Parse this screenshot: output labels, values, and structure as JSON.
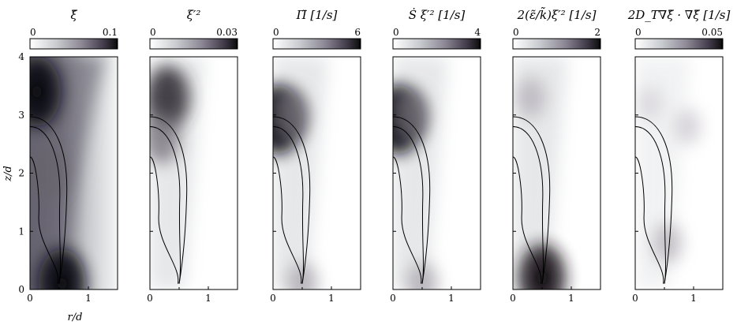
{
  "chart_data": [
    {
      "type": "heatmap",
      "title": "ξ̃",
      "colorbar": {
        "ticks": [
          "0",
          "0.1"
        ],
        "range": [
          0,
          0.1
        ]
      },
      "xlabel": "r/d",
      "ylabel": "z/d",
      "xticks": [
        "0",
        "1"
      ],
      "yticks": [
        "0",
        "1",
        "2",
        "3",
        "4"
      ],
      "xlim": [
        0,
        1.5
      ],
      "ylim": [
        0,
        4
      ],
      "field": "concentration-mean",
      "intensity_hotspots": [
        {
          "r": 0.12,
          "z": 3.4,
          "level": 1.0
        },
        {
          "r": 0.55,
          "z": 0.1,
          "level": 1.0
        },
        {
          "r": 0.3,
          "z": 2.0,
          "level": 0.6
        }
      ],
      "contour_lines": [
        {
          "z_top": 2.97,
          "r_max": 0.6,
          "r_tip": 0.5
        },
        {
          "z_top": 2.8,
          "r_max": 0.48,
          "r_tip": 0.5
        },
        {
          "z_top": 2.28,
          "r_max": 0.12,
          "r_tip": 0.48
        }
      ]
    },
    {
      "type": "heatmap",
      "title": "ξ′² (Favre)",
      "colorbar": {
        "ticks": [
          "0",
          "0.03"
        ],
        "range": [
          0,
          0.03
        ]
      },
      "xticks": [
        "0",
        "1"
      ],
      "yticks": [],
      "xlim": [
        0,
        1.5
      ],
      "ylim": [
        0,
        4
      ],
      "field": "concentration-variance",
      "intensity_hotspots": [
        {
          "r": 0.3,
          "z": 3.3,
          "level": 0.85
        },
        {
          "r": 0.2,
          "z": 2.6,
          "level": 0.55
        }
      ],
      "contour_lines": [
        {
          "z_top": 2.97,
          "r_max": 0.6,
          "r_tip": 0.5
        },
        {
          "z_top": 2.8,
          "r_max": 0.48,
          "r_tip": 0.5
        },
        {
          "z_top": 2.28,
          "r_max": 0.12,
          "r_tip": 0.48
        }
      ]
    },
    {
      "type": "heatmap",
      "title": "Π (Favre)",
      "units": "[1/s]",
      "colorbar": {
        "ticks": [
          "0",
          "6"
        ],
        "range": [
          0,
          6
        ]
      },
      "xticks": [
        "0",
        "1"
      ],
      "yticks": [],
      "xlim": [
        0,
        1.5
      ],
      "ylim": [
        0,
        4
      ],
      "field": "production",
      "intensity_hotspots": [
        {
          "r": 0.08,
          "z": 2.92,
          "level": 1.0
        },
        {
          "r": 0.3,
          "z": 3.0,
          "level": 0.55
        },
        {
          "r": 0.5,
          "z": 0.1,
          "level": 0.35
        }
      ],
      "contour_lines": [
        {
          "z_top": 2.97,
          "r_max": 0.6,
          "r_tip": 0.5
        },
        {
          "z_top": 2.8,
          "r_max": 0.48,
          "r_tip": 0.5
        },
        {
          "z_top": 2.28,
          "r_max": 0.12,
          "r_tip": 0.48
        }
      ]
    },
    {
      "type": "heatmap",
      "title": "Ṡ ξ′²",
      "units": "[1/s]",
      "colorbar": {
        "ticks": [
          "0",
          "4"
        ],
        "range": [
          0,
          4
        ]
      },
      "xticks": [
        "0",
        "1"
      ],
      "yticks": [],
      "xlim": [
        0,
        1.5
      ],
      "ylim": [
        0,
        4
      ],
      "field": "scalar-source",
      "intensity_hotspots": [
        {
          "r": 0.08,
          "z": 2.92,
          "level": 1.0
        },
        {
          "r": 0.3,
          "z": 3.0,
          "level": 0.55
        },
        {
          "r": 0.5,
          "z": 0.1,
          "level": 0.35
        }
      ],
      "contour_lines": [
        {
          "z_top": 2.97,
          "r_max": 0.6,
          "r_tip": 0.5
        },
        {
          "z_top": 2.8,
          "r_max": 0.48,
          "r_tip": 0.5
        },
        {
          "z_top": 2.28,
          "r_max": 0.12,
          "r_tip": 0.48
        }
      ]
    },
    {
      "type": "heatmap",
      "title": "2(ε̃/k̃)ξ′²",
      "units": "[1/s]",
      "colorbar": {
        "ticks": [
          "0",
          "2"
        ],
        "range": [
          0,
          2
        ]
      },
      "xticks": [
        "0",
        "1"
      ],
      "yticks": [],
      "xlim": [
        0,
        1.5
      ],
      "ylim": [
        0,
        4
      ],
      "field": "dissipation",
      "intensity_hotspots": [
        {
          "r": 0.3,
          "z": 3.3,
          "level": 0.3
        },
        {
          "r": 0.5,
          "z": 0.2,
          "level": 0.95
        }
      ],
      "contour_lines": [
        {
          "z_top": 2.97,
          "r_max": 0.6,
          "r_tip": 0.5
        },
        {
          "z_top": 2.8,
          "r_max": 0.48,
          "r_tip": 0.5
        },
        {
          "z_top": 2.28,
          "r_max": 0.12,
          "r_tip": 0.48
        }
      ]
    },
    {
      "type": "heatmap",
      "title": "2D_T ∇ξ̃ · ∇ξ̃",
      "units": "[1/s]",
      "colorbar": {
        "ticks": [
          "0",
          "0.05"
        ],
        "range": [
          0,
          0.05
        ]
      },
      "xticks": [
        "0",
        "1"
      ],
      "yticks": [],
      "xlim": [
        0,
        1.5
      ],
      "ylim": [
        0,
        4
      ],
      "field": "gradient-term",
      "intensity_hotspots": [
        {
          "r": 0.55,
          "z": 0.8,
          "level": 0.3
        },
        {
          "r": 0.9,
          "z": 2.8,
          "level": 0.2
        },
        {
          "r": 0.25,
          "z": 3.2,
          "level": 0.15
        }
      ],
      "contour_lines": [
        {
          "z_top": 2.97,
          "r_max": 0.6,
          "r_tip": 0.5
        },
        {
          "z_top": 2.8,
          "r_max": 0.48,
          "r_tip": 0.5
        },
        {
          "z_top": 2.28,
          "r_max": 0.12,
          "r_tip": 0.48
        }
      ]
    }
  ],
  "labels": {
    "panel_titles": [
      "ξ̃",
      "ξ′²",
      "Π̃  [1/s]",
      "Ṡ ξ′²  [1/s]",
      "2(ε̃/k̃)ξ′² [1/s]",
      "2D_T∇ξ̃ · ∇ξ̃ [1/s]"
    ],
    "xlabel": "r/d",
    "ylabel": "z/d"
  }
}
